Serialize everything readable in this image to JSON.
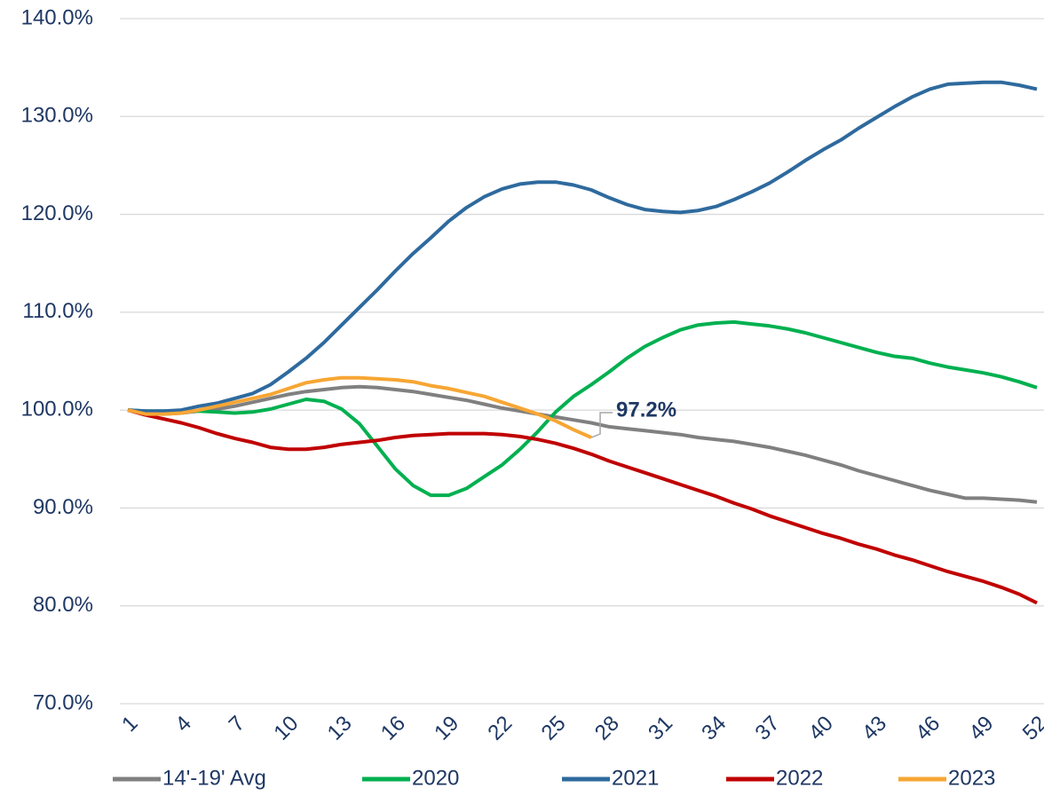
{
  "chart_data": {
    "type": "line",
    "x": [
      1,
      2,
      3,
      4,
      5,
      6,
      7,
      8,
      9,
      10,
      11,
      12,
      13,
      14,
      15,
      16,
      17,
      18,
      19,
      20,
      21,
      22,
      23,
      24,
      25,
      26,
      27,
      28,
      29,
      30,
      31,
      32,
      33,
      34,
      35,
      36,
      37,
      38,
      39,
      40,
      41,
      42,
      43,
      44,
      45,
      46,
      47,
      48,
      49,
      50,
      51,
      52
    ],
    "xlim": [
      1,
      52
    ],
    "xticks": [
      1,
      4,
      7,
      10,
      13,
      16,
      19,
      22,
      25,
      28,
      31,
      34,
      37,
      40,
      43,
      46,
      49,
      52
    ],
    "ylim": [
      70,
      140
    ],
    "yticks": [
      {
        "value": 70,
        "label": "70.0%"
      },
      {
        "value": 80,
        "label": "80.0%"
      },
      {
        "value": 90,
        "label": "90.0%"
      },
      {
        "value": 100,
        "label": "100.0%"
      },
      {
        "value": 110,
        "label": "110.0%"
      },
      {
        "value": 120,
        "label": "120.0%"
      },
      {
        "value": 130,
        "label": "130.0%"
      },
      {
        "value": 140,
        "label": "140.0%"
      }
    ],
    "grid": true,
    "legend": "bottom",
    "series": [
      {
        "name": "14'-19' Avg",
        "color": "#808080",
        "values": [
          100,
          99.7,
          99.6,
          99.7,
          99.9,
          100.1,
          100.4,
          100.8,
          101.2,
          101.6,
          101.9,
          102.1,
          102.3,
          102.4,
          102.3,
          102.1,
          101.9,
          101.6,
          101.3,
          101.0,
          100.6,
          100.2,
          99.9,
          99.6,
          99.3,
          99.0,
          98.7,
          98.3,
          98.1,
          97.9,
          97.7,
          97.5,
          97.2,
          97.0,
          96.8,
          96.5,
          96.2,
          95.8,
          95.4,
          94.9,
          94.4,
          93.8,
          93.3,
          92.8,
          92.3,
          91.8,
          91.4,
          91.0,
          91.0,
          90.9,
          90.8,
          90.6
        ]
      },
      {
        "name": "2020",
        "color": "#00b050",
        "values": [
          100,
          99.9,
          99.9,
          99.9,
          99.9,
          99.8,
          99.7,
          99.8,
          100.1,
          100.6,
          101.1,
          100.9,
          100.1,
          98.6,
          96.3,
          94.0,
          92.3,
          91.3,
          91.3,
          92.0,
          93.2,
          94.4,
          96.0,
          97.8,
          99.8,
          101.4,
          102.6,
          103.9,
          105.3,
          106.5,
          107.4,
          108.2,
          108.7,
          108.9,
          109.0,
          108.8,
          108.6,
          108.3,
          107.9,
          107.4,
          106.9,
          106.4,
          105.9,
          105.5,
          105.3,
          104.8,
          104.4,
          104.1,
          103.8,
          103.4,
          102.9,
          102.3
        ]
      },
      {
        "name": "2021",
        "color": "#2e6a9e",
        "values": [
          100,
          99.9,
          99.9,
          100.0,
          100.4,
          100.7,
          101.2,
          101.7,
          102.6,
          103.9,
          105.3,
          106.9,
          108.7,
          110.5,
          112.3,
          114.2,
          116.0,
          117.6,
          119.3,
          120.7,
          121.8,
          122.6,
          123.1,
          123.3,
          123.3,
          123.0,
          122.5,
          121.7,
          121.0,
          120.5,
          120.3,
          120.2,
          120.4,
          120.8,
          121.5,
          122.3,
          123.2,
          124.3,
          125.5,
          126.6,
          127.6,
          128.8,
          129.9,
          131.0,
          132.0,
          132.8,
          133.3,
          133.4,
          133.5,
          133.5,
          133.2,
          132.8
        ]
      },
      {
        "name": "2022",
        "color": "#c00000",
        "values": [
          100,
          99.5,
          99.1,
          98.7,
          98.2,
          97.6,
          97.1,
          96.7,
          96.2,
          96.0,
          96.0,
          96.2,
          96.5,
          96.7,
          96.9,
          97.2,
          97.4,
          97.5,
          97.6,
          97.6,
          97.6,
          97.5,
          97.3,
          97.0,
          96.6,
          96.1,
          95.5,
          94.8,
          94.2,
          93.6,
          93.0,
          92.4,
          91.8,
          91.2,
          90.5,
          89.9,
          89.2,
          88.6,
          88.0,
          87.4,
          86.9,
          86.3,
          85.8,
          85.2,
          84.7,
          84.1,
          83.5,
          83.0,
          82.5,
          81.9,
          81.2,
          80.3
        ]
      },
      {
        "name": "2023",
        "color": "#f7a634",
        "values": [
          100,
          99.6,
          99.6,
          99.7,
          100.0,
          100.4,
          100.8,
          101.2,
          101.6,
          102.2,
          102.8,
          103.1,
          103.3,
          103.3,
          103.2,
          103.1,
          102.9,
          102.5,
          102.2,
          101.8,
          101.4,
          100.8,
          100.2,
          99.6,
          98.9,
          98.0,
          97.2,
          null,
          null,
          null,
          null,
          null,
          null,
          null,
          null,
          null,
          null,
          null,
          null,
          null,
          null,
          null,
          null,
          null,
          null,
          null,
          null,
          null,
          null,
          null,
          null,
          null
        ],
        "value_labels": [
          null,
          null,
          null,
          null,
          null,
          null,
          null,
          null,
          null,
          null,
          null,
          null,
          null,
          null,
          null,
          null,
          null,
          null,
          null,
          null,
          null,
          null,
          null,
          null,
          null,
          null,
          "97.2%",
          null,
          null,
          null,
          null,
          null,
          null,
          null,
          null,
          null,
          null,
          null,
          null,
          null,
          null,
          null,
          null,
          null,
          null,
          null,
          null,
          null,
          null,
          null,
          null,
          null
        ]
      }
    ]
  }
}
